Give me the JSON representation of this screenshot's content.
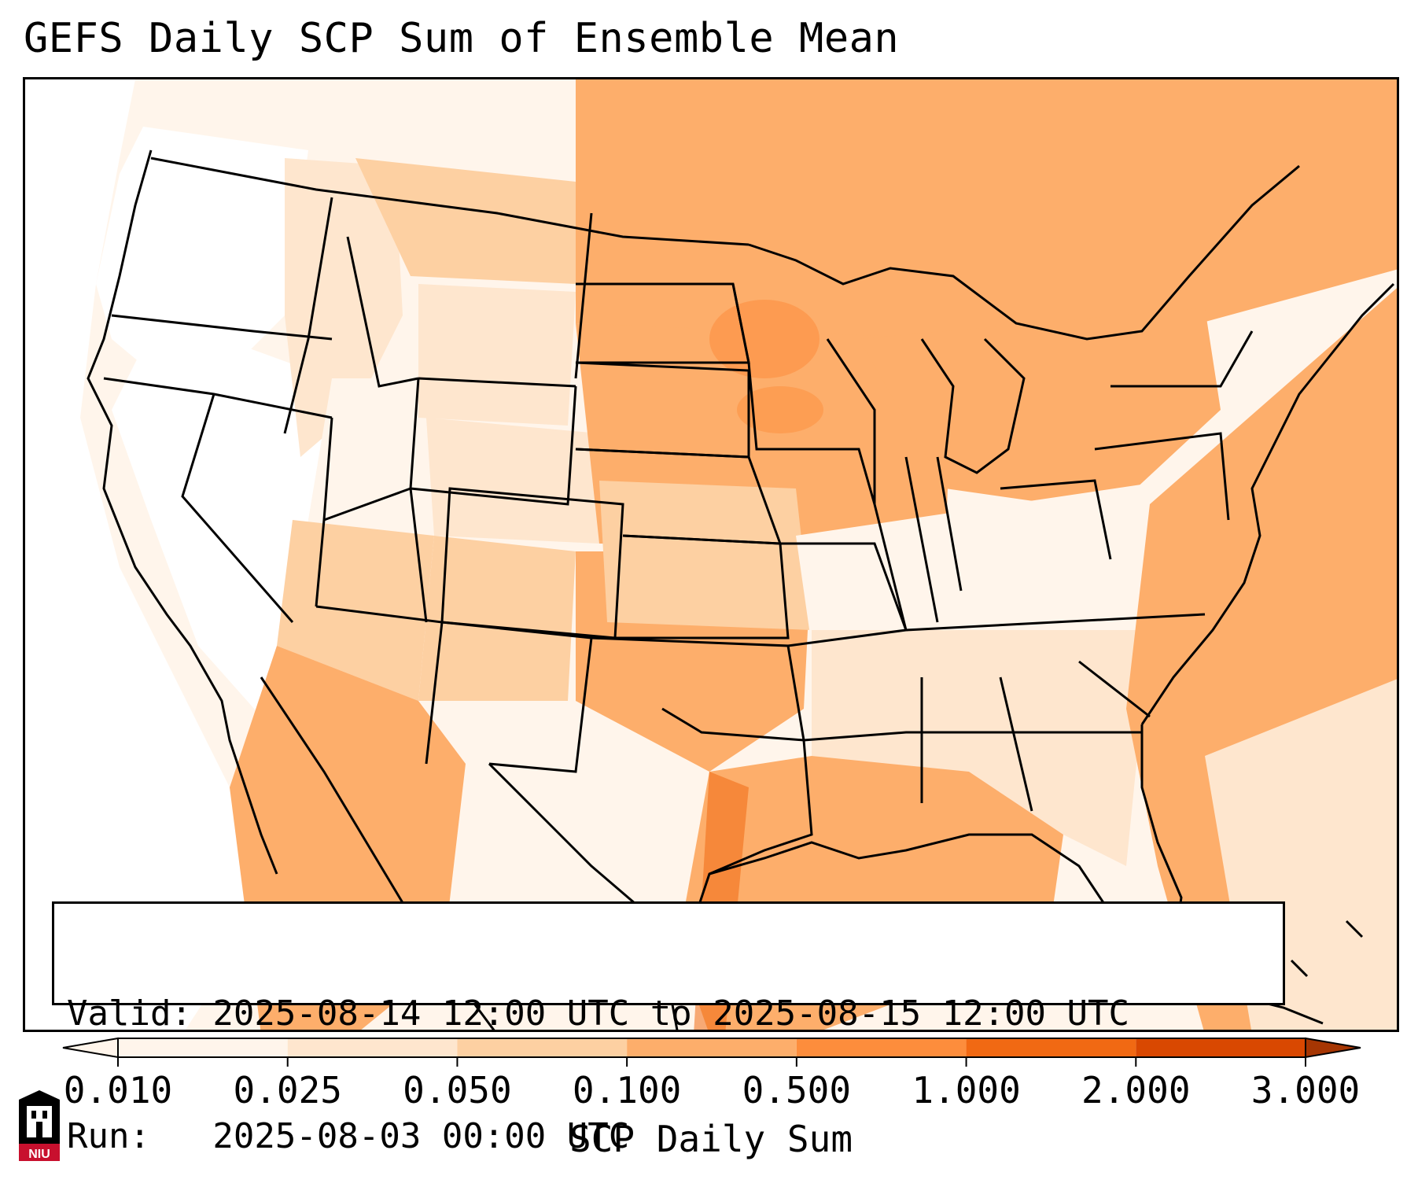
{
  "title": "GEFS Daily SCP Sum of Ensemble Mean",
  "info": {
    "valid_line": "Valid: 2025-08-14 12:00 UTC to 2025-08-15 12:00 UTC",
    "run_line": "Run:   2025-08-03 00:00 UTC"
  },
  "colorbar": {
    "title": "SCP Daily Sum",
    "ticks": [
      "0.010",
      "0.025",
      "0.050",
      "0.100",
      "0.500",
      "1.000",
      "2.000",
      "3.000"
    ],
    "colors": [
      "#fff5eb",
      "#fee6ce",
      "#fdd0a2",
      "#fdae6b",
      "#fd8d3c",
      "#f16913",
      "#d94801",
      "#a63603"
    ],
    "extend": "both"
  },
  "map": {
    "region": "Contiguous United States",
    "fill_colors": {
      "none": "#ffffff",
      "very_low": "#fff5eb",
      "low": "#fee6ce",
      "mid": "#fdd0a2",
      "high": "#fdae6b",
      "max": "#fd8d3c"
    }
  },
  "logo": {
    "text": "NIU",
    "colors": {
      "primary": "#c8102e",
      "secondary": "#000000"
    }
  }
}
